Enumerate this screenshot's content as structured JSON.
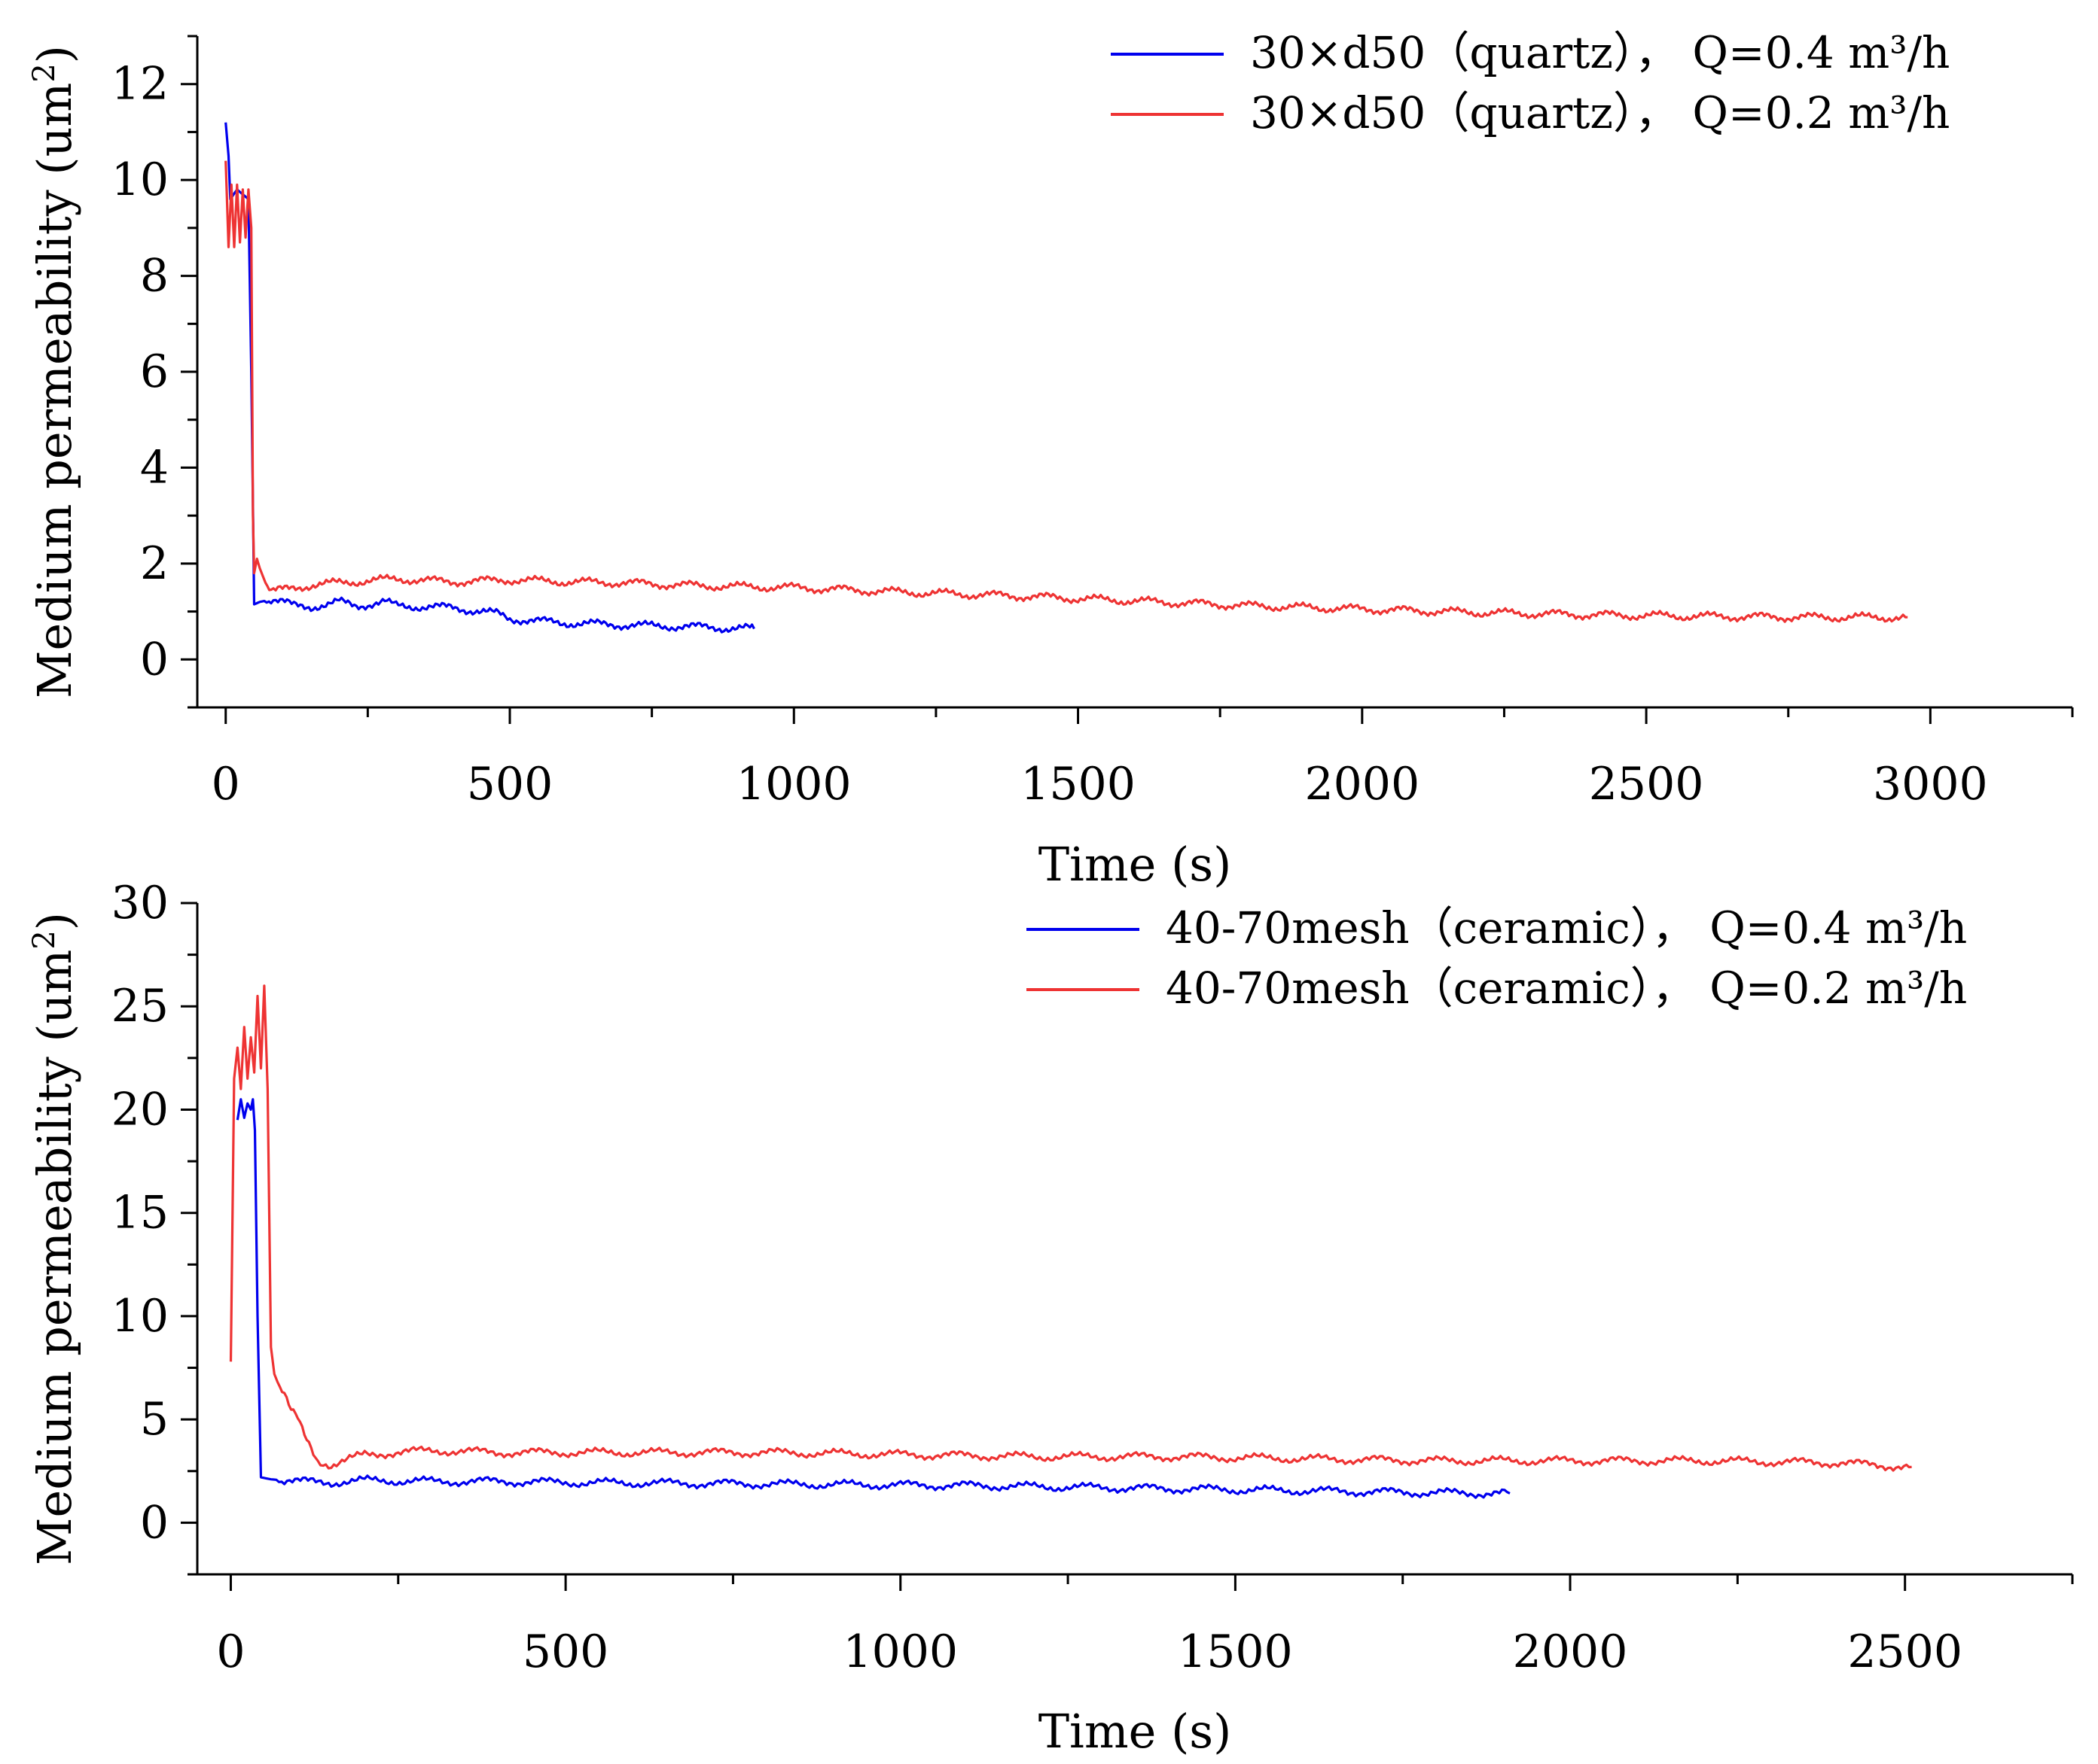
{
  "chart_data": [
    {
      "type": "line",
      "xlabel": "Time (s)",
      "ylabel": "Medium permeability (um",
      "ylabel_sup": "2",
      "ylabel_close": ")",
      "xlim": [
        -50,
        3250
      ],
      "ylim": [
        -1,
        13
      ],
      "xticks": [
        0,
        500,
        1000,
        1500,
        2000,
        2500,
        3000
      ],
      "xminor": [
        250,
        750,
        1250,
        1750,
        2250,
        2750,
        3250
      ],
      "yticks": [
        0,
        2,
        4,
        6,
        8,
        10,
        12
      ],
      "yminor": [
        -1,
        1,
        3,
        5,
        7,
        9,
        11,
        13
      ],
      "legend_position": "top-right",
      "series": [
        {
          "name": "30×d50（quartz）， Q=0.4 m³/h",
          "color": "#0000ee",
          "x": [
            0,
            5,
            8,
            20,
            30,
            40,
            45,
            50,
            60,
            80,
            100,
            120,
            150,
            180,
            200,
            230,
            250,
            280,
            300,
            350,
            400,
            450,
            480,
            500,
            550,
            600,
            650,
            700,
            750,
            800,
            850,
            900,
            930
          ],
          "y": [
            11.2,
            10.5,
            9.6,
            9.8,
            9.7,
            9.6,
            6.0,
            1.15,
            1.2,
            1.25,
            1.2,
            1.12,
            1.1,
            1.15,
            1.2,
            1.12,
            1.15,
            1.2,
            1.12,
            1.1,
            1.08,
            1.0,
            0.95,
            0.85,
            0.8,
            0.76,
            0.74,
            0.72,
            0.7,
            0.69,
            0.67,
            0.65,
            0.64
          ]
        },
        {
          "name": "30×d50（quartz）， Q=0.2 m³/h",
          "color": "#ee3333",
          "x": [
            0,
            5,
            10,
            15,
            20,
            25,
            30,
            35,
            40,
            45,
            48,
            50,
            55,
            60,
            70,
            80,
            100,
            150,
            200,
            300,
            400,
            500,
            600,
            700,
            800,
            900,
            1000,
            1200,
            1400,
            1600,
            1800,
            2000,
            2200,
            2400,
            2600,
            2800,
            2960
          ],
          "y": [
            10.4,
            8.6,
            9.9,
            8.6,
            9.9,
            8.7,
            9.8,
            8.8,
            9.8,
            9.0,
            3.0,
            1.8,
            2.1,
            1.9,
            1.6,
            1.42,
            1.45,
            1.55,
            1.6,
            1.68,
            1.62,
            1.66,
            1.62,
            1.6,
            1.55,
            1.52,
            1.5,
            1.4,
            1.32,
            1.22,
            1.12,
            1.05,
            0.98,
            0.93,
            0.9,
            0.88,
            0.88
          ]
        }
      ]
    },
    {
      "type": "line",
      "xlabel": "Time (s)",
      "ylabel": "Medium permeability (um",
      "ylabel_sup": "2",
      "ylabel_close": ")",
      "xlim": [
        -50,
        2750
      ],
      "ylim": [
        -2.5,
        30
      ],
      "xticks": [
        0,
        500,
        1000,
        1500,
        2000,
        2500
      ],
      "xminor": [
        250,
        750,
        1250,
        1750,
        2250,
        2750
      ],
      "yticks": [
        0,
        5,
        10,
        15,
        20,
        25,
        30
      ],
      "yminor": [
        -2.5,
        2.5,
        7.5,
        12.5,
        17.5,
        22.5,
        27.5
      ],
      "legend_position": "top-right",
      "series": [
        {
          "name": "40-70mesh（ceramic）， Q=0.4 m³/h",
          "color": "#0000ee",
          "x": [
            10,
            15,
            20,
            25,
            30,
            33,
            36,
            40,
            45,
            60,
            100,
            150,
            200,
            300,
            400,
            500,
            700,
            900,
            1100,
            1300,
            1500,
            1700,
            1800,
            1910
          ],
          "y": [
            19.5,
            20.5,
            19.6,
            20.3,
            20.0,
            20.5,
            19.0,
            10.0,
            2.2,
            2.1,
            2.0,
            1.95,
            2.05,
            2.0,
            2.0,
            1.95,
            1.9,
            1.85,
            1.8,
            1.7,
            1.6,
            1.5,
            1.45,
            1.42
          ]
        },
        {
          "name": "40-70mesh（ceramic）， Q=0.2 m³/h",
          "color": "#ee3333",
          "x": [
            0,
            5,
            10,
            15,
            20,
            25,
            30,
            35,
            40,
            45,
            50,
            55,
            60,
            65,
            70,
            80,
            90,
            100,
            110,
            120,
            130,
            150,
            170,
            200,
            250,
            300,
            400,
            500,
            600,
            700,
            800,
            1000,
            1200,
            1400,
            1600,
            1800,
            2000,
            2200,
            2400,
            2510
          ],
          "y": [
            7.8,
            21.5,
            23.0,
            21.0,
            24.0,
            21.5,
            23.5,
            21.8,
            25.5,
            22.0,
            26.0,
            21.0,
            8.5,
            7.2,
            6.8,
            6.2,
            5.4,
            5.0,
            4.2,
            3.6,
            3.0,
            2.8,
            3.0,
            3.3,
            3.4,
            3.5,
            3.4,
            3.4,
            3.4,
            3.4,
            3.4,
            3.3,
            3.2,
            3.2,
            3.1,
            3.0,
            3.0,
            3.0,
            2.9,
            2.7
          ]
        }
      ]
    }
  ]
}
